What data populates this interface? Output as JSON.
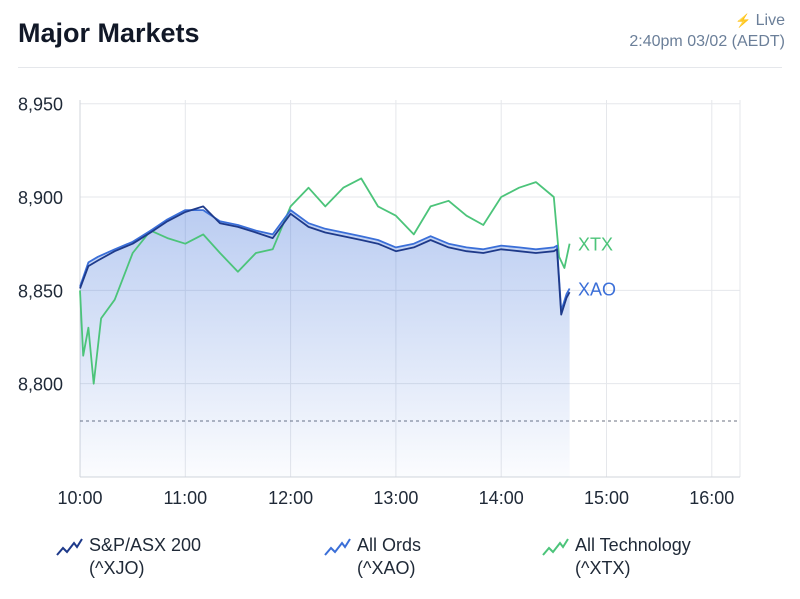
{
  "header": {
    "title": "Major Markets",
    "live_label": "Live",
    "live_icon": "lightning-icon",
    "timestamp": "2:40pm 03/02 (AEDT)"
  },
  "colors": {
    "xjo": "#1e3a8a",
    "xao": "#3b6fd8",
    "xtx": "#4cc47a",
    "grid": "#e5e7eb",
    "baseline": "#6b7280"
  },
  "chart_data": {
    "type": "line",
    "title": "Major Markets",
    "xlabel": "",
    "ylabel": "",
    "x_ticks": [
      "10:00",
      "11:00",
      "12:00",
      "13:00",
      "14:00",
      "15:00",
      "16:00"
    ],
    "y_ticks": [
      "8,800",
      "8,850",
      "8,900",
      "8,950"
    ],
    "ylim": [
      8750,
      8952
    ],
    "xlim_hours": [
      10,
      16.27
    ],
    "previous_close": 8780,
    "grid": true,
    "end_labels": [
      "XTX",
      "XAO"
    ],
    "series": [
      {
        "key": "xao",
        "name": "All Ords",
        "code": "(^XAO)",
        "t": [
          10,
          10.08,
          10.17,
          10.33,
          10.5,
          10.67,
          10.83,
          11,
          11.17,
          11.33,
          11.5,
          11.67,
          11.83,
          12,
          12.17,
          12.33,
          12.5,
          12.67,
          12.83,
          13,
          13.17,
          13.33,
          13.5,
          13.67,
          13.83,
          14,
          14.17,
          14.33,
          14.5,
          14.53,
          14.57,
          14.62,
          14.65
        ],
        "values": [
          8852,
          8865,
          8868,
          8872,
          8876,
          8882,
          8888,
          8893,
          8893,
          8887,
          8885,
          8882,
          8880,
          8893,
          8886,
          8883,
          8881,
          8879,
          8877,
          8873,
          8875,
          8879,
          8875,
          8873,
          8872,
          8874,
          8873,
          8872,
          8873,
          8874,
          8839,
          8848,
          8851
        ]
      },
      {
        "key": "xjo",
        "name": "S&P/ASX 200",
        "code": "(^XJO)",
        "t": [
          10,
          10.08,
          10.17,
          10.33,
          10.5,
          10.67,
          10.83,
          11,
          11.17,
          11.33,
          11.5,
          11.67,
          11.83,
          12,
          12.17,
          12.33,
          12.5,
          12.67,
          12.83,
          13,
          13.17,
          13.33,
          13.5,
          13.67,
          13.83,
          14,
          14.17,
          14.33,
          14.5,
          14.53,
          14.57,
          14.62,
          14.65
        ],
        "values": [
          8851,
          8863,
          8866,
          8871,
          8875,
          8881,
          8887,
          8892,
          8895,
          8886,
          8884,
          8881,
          8878,
          8891,
          8884,
          8881,
          8879,
          8877,
          8875,
          8871,
          8873,
          8877,
          8873,
          8871,
          8870,
          8872,
          8871,
          8870,
          8871,
          8872,
          8837,
          8846,
          8849
        ]
      },
      {
        "key": "xtx",
        "name": "All Technology",
        "code": "(^XTX)",
        "t": [
          10,
          10.03,
          10.08,
          10.13,
          10.2,
          10.33,
          10.5,
          10.67,
          10.83,
          11,
          11.17,
          11.33,
          11.5,
          11.67,
          11.83,
          12,
          12.17,
          12.33,
          12.5,
          12.67,
          12.83,
          13,
          13.17,
          13.33,
          13.5,
          13.67,
          13.83,
          14,
          14.17,
          14.33,
          14.5,
          14.55,
          14.6,
          14.65
        ],
        "values": [
          8850,
          8815,
          8830,
          8800,
          8835,
          8845,
          8870,
          8882,
          8878,
          8875,
          8880,
          8870,
          8860,
          8870,
          8872,
          8895,
          8905,
          8895,
          8905,
          8910,
          8895,
          8890,
          8880,
          8895,
          8898,
          8890,
          8885,
          8900,
          8905,
          8908,
          8900,
          8868,
          8862,
          8875
        ]
      }
    ]
  }
}
